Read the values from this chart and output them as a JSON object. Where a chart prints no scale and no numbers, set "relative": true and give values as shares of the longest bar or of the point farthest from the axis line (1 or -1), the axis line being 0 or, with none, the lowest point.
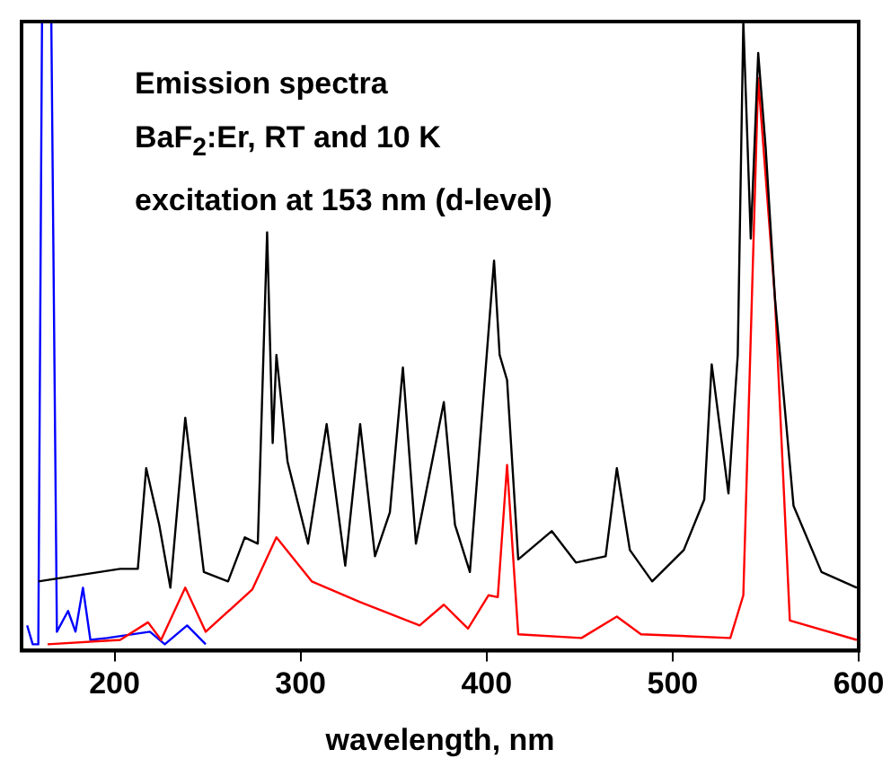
{
  "chart_data": {
    "type": "line",
    "xlabel": "wavelength, nm",
    "relative": true,
    "xlim": [
      150,
      600
    ],
    "xticks": [
      200,
      300,
      400,
      500,
      600
    ],
    "grid": false,
    "legend": false,
    "marker": "none",
    "line_style": "solid",
    "annotations": [
      "Emission spectra",
      "BaF$_{2}$:Er, RT and 10 K",
      "excitation at 153 nm (d-level)"
    ],
    "series": [
      {
        "color": "#000000",
        "x": [
          159,
          203,
          212.5,
          217,
          224,
          230,
          238,
          248,
          261,
          270,
          277,
          282,
          285,
          287,
          293,
          304,
          314,
          324,
          332,
          340,
          348,
          355,
          362,
          377,
          383,
          391,
          399,
          404,
          407,
          411,
          417,
          435,
          448,
          464,
          470,
          477,
          489,
          506,
          517,
          521,
          530,
          535,
          538,
          542,
          546,
          550,
          555,
          565,
          580,
          599
        ],
        "values": [
          0.11,
          0.13,
          0.13,
          0.29,
          0.2,
          0.1,
          0.37,
          0.125,
          0.11,
          0.18,
          0.17,
          0.665,
          0.33,
          0.47,
          0.3,
          0.17,
          0.36,
          0.135,
          0.36,
          0.15,
          0.22,
          0.45,
          0.17,
          0.395,
          0.2,
          0.125,
          0.43,
          0.62,
          0.47,
          0.43,
          0.145,
          0.19,
          0.14,
          0.15,
          0.29,
          0.16,
          0.11,
          0.16,
          0.24,
          0.455,
          0.25,
          0.47,
          1,
          0.655,
          0.95,
          0.8,
          0.56,
          0.23,
          0.125,
          0.1
        ]
      },
      {
        "color": "#ff0000",
        "x": [
          164,
          203,
          218,
          225,
          238,
          249,
          274,
          287,
          306,
          332,
          364,
          377,
          390,
          401,
          406,
          411,
          417,
          451,
          470,
          483,
          531,
          538,
          546,
          555,
          563,
          599
        ],
        "values": [
          0.01,
          0.017,
          0.045,
          0.017,
          0.1,
          0.03,
          0.097,
          0.18,
          0.11,
          0.077,
          0.04,
          0.073,
          0.035,
          0.088,
          0.085,
          0.295,
          0.026,
          0.02,
          0.054,
          0.026,
          0.02,
          0.088,
          0.91,
          0.56,
          0.048,
          0.017
        ]
      },
      {
        "color": "#0000ff",
        "x": [
          153,
          156,
          159,
          161,
          166,
          169,
          175,
          179,
          183,
          187,
          196,
          219,
          227,
          239,
          249
        ],
        "values": [
          0.04,
          0.01,
          0.01,
          1,
          1,
          0.03,
          0.063,
          0.03,
          0.1,
          0.017,
          0.02,
          0.03,
          0.01,
          0.04,
          0.01
        ]
      }
    ]
  }
}
